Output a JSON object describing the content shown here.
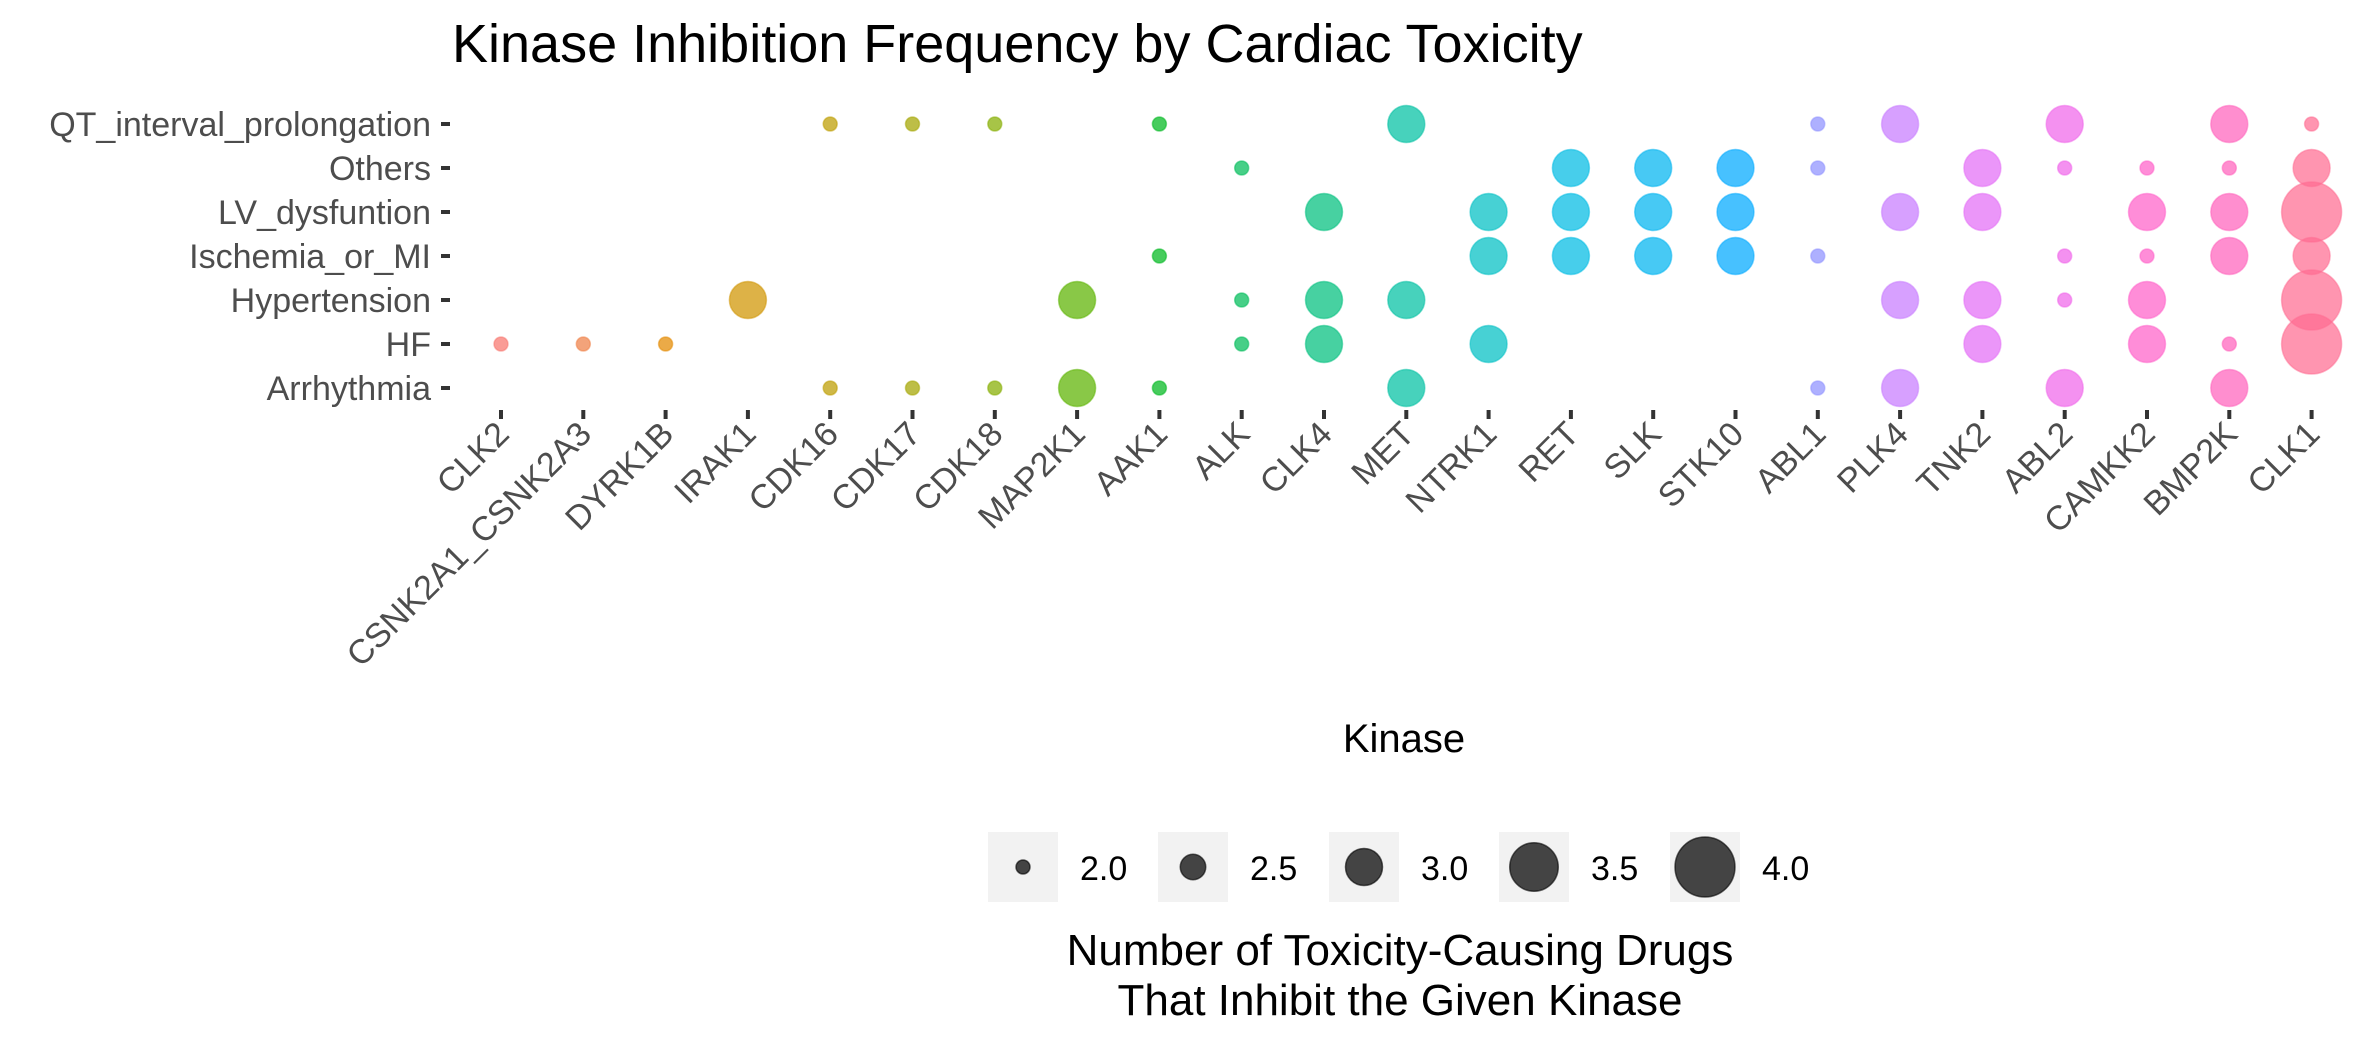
{
  "chart_data": {
    "type": "scatter",
    "title": "Kinase Inhibition Frequency by Cardiac Toxicity",
    "xlabel": "Kinase",
    "ylabel": "",
    "x_categories": [
      "CLK2",
      "CSNK2A1_CSNK2A3",
      "DYRK1B",
      "IRAK1",
      "CDK16",
      "CDK17",
      "CDK18",
      "MAP2K1",
      "AAK1",
      "ALK",
      "CLK4",
      "MET",
      "NTRK1",
      "RET",
      "SLK",
      "STK10",
      "ABL1",
      "PLK4",
      "TNK2",
      "ABL2",
      "CAMKK2",
      "BMP2K",
      "CLK1"
    ],
    "y_categories": [
      "QT_interval_prolongation",
      "Others",
      "LV_dysfuntion",
      "Ischemia_or_MI",
      "Hypertension",
      "HF",
      "Arrhythmia"
    ],
    "colors": [
      "#F8766D",
      "#EF7F46",
      "#E38900",
      "#D09400",
      "#BD9D00",
      "#A3A500",
      "#85AD00",
      "#5CB300",
      "#00B81F",
      "#00BC59",
      "#00BF7D",
      "#00C0A2",
      "#00BFC4",
      "#00BBE3",
      "#00B4F0",
      "#00A9FF",
      "#8F91FF",
      "#C77CFF",
      "#E36EF6",
      "#F066EA",
      "#FF61C9",
      "#FF62BC",
      "#FF6C91"
    ],
    "size_legend": {
      "title_lines": [
        "Number of Toxicity-Causing Drugs",
        "That Inhibit the Given Kinase"
      ],
      "values": [
        2.0,
        2.5,
        3.0,
        3.5,
        4.0
      ],
      "labels": [
        "2.0",
        "2.5",
        "3.0",
        "3.5",
        "4.0"
      ]
    },
    "points": [
      {
        "x": "CLK2",
        "y": "HF",
        "size": 2
      },
      {
        "x": "CSNK2A1_CSNK2A3",
        "y": "HF",
        "size": 2
      },
      {
        "x": "DYRK1B",
        "y": "HF",
        "size": 2
      },
      {
        "x": "IRAK1",
        "y": "Hypertension",
        "size": 3
      },
      {
        "x": "CDK16",
        "y": "QT_interval_prolongation",
        "size": 2
      },
      {
        "x": "CDK16",
        "y": "Arrhythmia",
        "size": 2
      },
      {
        "x": "CDK17",
        "y": "QT_interval_prolongation",
        "size": 2
      },
      {
        "x": "CDK17",
        "y": "Arrhythmia",
        "size": 2
      },
      {
        "x": "CDK18",
        "y": "QT_interval_prolongation",
        "size": 2
      },
      {
        "x": "CDK18",
        "y": "Arrhythmia",
        "size": 2
      },
      {
        "x": "MAP2K1",
        "y": "Hypertension",
        "size": 3
      },
      {
        "x": "MAP2K1",
        "y": "Arrhythmia",
        "size": 3
      },
      {
        "x": "AAK1",
        "y": "QT_interval_prolongation",
        "size": 2
      },
      {
        "x": "AAK1",
        "y": "Ischemia_or_MI",
        "size": 2
      },
      {
        "x": "AAK1",
        "y": "Arrhythmia",
        "size": 2
      },
      {
        "x": "ALK",
        "y": "Others",
        "size": 2
      },
      {
        "x": "ALK",
        "y": "Hypertension",
        "size": 2
      },
      {
        "x": "ALK",
        "y": "HF",
        "size": 2
      },
      {
        "x": "CLK4",
        "y": "LV_dysfuntion",
        "size": 3
      },
      {
        "x": "CLK4",
        "y": "Hypertension",
        "size": 3
      },
      {
        "x": "CLK4",
        "y": "HF",
        "size": 3
      },
      {
        "x": "MET",
        "y": "QT_interval_prolongation",
        "size": 3
      },
      {
        "x": "MET",
        "y": "Hypertension",
        "size": 3
      },
      {
        "x": "MET",
        "y": "Arrhythmia",
        "size": 3
      },
      {
        "x": "NTRK1",
        "y": "LV_dysfuntion",
        "size": 3
      },
      {
        "x": "NTRK1",
        "y": "Ischemia_or_MI",
        "size": 3
      },
      {
        "x": "NTRK1",
        "y": "HF",
        "size": 3
      },
      {
        "x": "RET",
        "y": "Others",
        "size": 3
      },
      {
        "x": "RET",
        "y": "LV_dysfuntion",
        "size": 3
      },
      {
        "x": "RET",
        "y": "Ischemia_or_MI",
        "size": 3
      },
      {
        "x": "SLK",
        "y": "Others",
        "size": 3
      },
      {
        "x": "SLK",
        "y": "LV_dysfuntion",
        "size": 3
      },
      {
        "x": "SLK",
        "y": "Ischemia_or_MI",
        "size": 3
      },
      {
        "x": "STK10",
        "y": "Others",
        "size": 3
      },
      {
        "x": "STK10",
        "y": "LV_dysfuntion",
        "size": 3
      },
      {
        "x": "STK10",
        "y": "Ischemia_or_MI",
        "size": 3
      },
      {
        "x": "ABL1",
        "y": "QT_interval_prolongation",
        "size": 2
      },
      {
        "x": "ABL1",
        "y": "Others",
        "size": 2
      },
      {
        "x": "ABL1",
        "y": "Ischemia_or_MI",
        "size": 2
      },
      {
        "x": "ABL1",
        "y": "Arrhythmia",
        "size": 2
      },
      {
        "x": "PLK4",
        "y": "QT_interval_prolongation",
        "size": 3
      },
      {
        "x": "PLK4",
        "y": "LV_dysfuntion",
        "size": 3
      },
      {
        "x": "PLK4",
        "y": "Hypertension",
        "size": 3
      },
      {
        "x": "PLK4",
        "y": "Arrhythmia",
        "size": 3
      },
      {
        "x": "TNK2",
        "y": "Others",
        "size": 3
      },
      {
        "x": "TNK2",
        "y": "LV_dysfuntion",
        "size": 3
      },
      {
        "x": "TNK2",
        "y": "Hypertension",
        "size": 3
      },
      {
        "x": "TNK2",
        "y": "HF",
        "size": 3
      },
      {
        "x": "ABL2",
        "y": "QT_interval_prolongation",
        "size": 3
      },
      {
        "x": "ABL2",
        "y": "Others",
        "size": 2
      },
      {
        "x": "ABL2",
        "y": "Ischemia_or_MI",
        "size": 2
      },
      {
        "x": "ABL2",
        "y": "Hypertension",
        "size": 2
      },
      {
        "x": "ABL2",
        "y": "Arrhythmia",
        "size": 3
      },
      {
        "x": "CAMKK2",
        "y": "Others",
        "size": 2
      },
      {
        "x": "CAMKK2",
        "y": "LV_dysfuntion",
        "size": 3
      },
      {
        "x": "CAMKK2",
        "y": "Ischemia_or_MI",
        "size": 2
      },
      {
        "x": "CAMKK2",
        "y": "Hypertension",
        "size": 3
      },
      {
        "x": "CAMKK2",
        "y": "HF",
        "size": 3
      },
      {
        "x": "BMP2K",
        "y": "QT_interval_prolongation",
        "size": 3
      },
      {
        "x": "BMP2K",
        "y": "Others",
        "size": 2
      },
      {
        "x": "BMP2K",
        "y": "LV_dysfuntion",
        "size": 3
      },
      {
        "x": "BMP2K",
        "y": "Ischemia_or_MI",
        "size": 3
      },
      {
        "x": "BMP2K",
        "y": "HF",
        "size": 2
      },
      {
        "x": "BMP2K",
        "y": "Arrhythmia",
        "size": 3
      },
      {
        "x": "CLK1",
        "y": "QT_interval_prolongation",
        "size": 2
      },
      {
        "x": "CLK1",
        "y": "Others",
        "size": 3
      },
      {
        "x": "CLK1",
        "y": "LV_dysfuntion",
        "size": 4
      },
      {
        "x": "CLK1",
        "y": "Ischemia_or_MI",
        "size": 3
      },
      {
        "x": "CLK1",
        "y": "Hypertension",
        "size": 4
      },
      {
        "x": "CLK1",
        "y": "HF",
        "size": 4
      }
    ],
    "grid": false,
    "legend_position": "bottom"
  }
}
